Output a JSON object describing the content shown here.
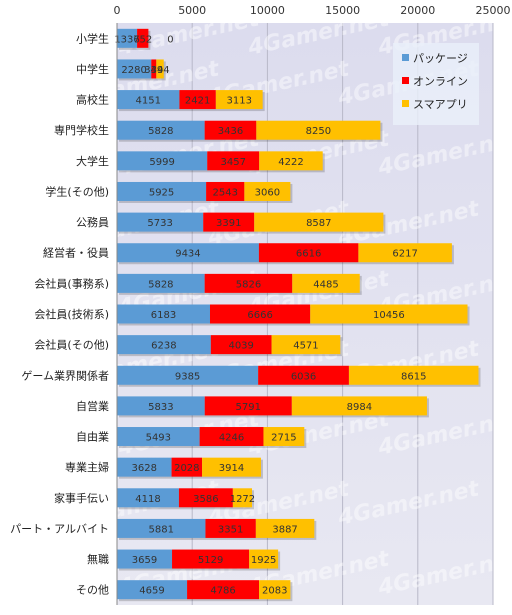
{
  "watermark": "4Gamer.net",
  "chart_data": {
    "type": "bar",
    "orientation": "horizontal",
    "stacked": true,
    "title": "",
    "xlabel": "",
    "ylabel": "",
    "xlim": [
      0,
      25000
    ],
    "x_ticks": [
      "0",
      "5000",
      "10000",
      "15000",
      "20000",
      "25000"
    ],
    "x_axis_position": "top",
    "grid": true,
    "legend_position": "top-right",
    "categories": [
      "小学生",
      "中学生",
      "高校生",
      "専門学校生",
      "大学生",
      "学生(その他)",
      "公務員",
      "経営者・役員",
      "会社員(事務系)",
      "会社員(技術系)",
      "会社員(その他)",
      "ゲーム業界関係者",
      "自営業",
      "自由業",
      "専業主婦",
      "家事手伝い",
      "パート・アルバイト",
      "無職",
      "その他"
    ],
    "series": [
      {
        "name": "パッケージ",
        "color": "#5b9bd5",
        "values": [
          1336,
          2280,
          4151,
          5828,
          5999,
          5925,
          5733,
          9434,
          5828,
          6183,
          6238,
          9385,
          5833,
          5493,
          3628,
          4118,
          5881,
          3659,
          4659
        ]
      },
      {
        "name": "オンライン",
        "color": "#ff0000",
        "values": [
          752,
          334,
          2421,
          3436,
          3457,
          2543,
          3391,
          6616,
          5826,
          6666,
          4039,
          6036,
          5791,
          4246,
          2028,
          3586,
          3351,
          5129,
          4786
        ]
      },
      {
        "name": "スマアプリ",
        "color": "#ffc000",
        "values": [
          0,
          494,
          3113,
          8250,
          4222,
          3060,
          8587,
          6217,
          4485,
          10456,
          4571,
          8615,
          8984,
          2715,
          3914,
          1272,
          3887,
          1925,
          2083
        ]
      }
    ]
  }
}
